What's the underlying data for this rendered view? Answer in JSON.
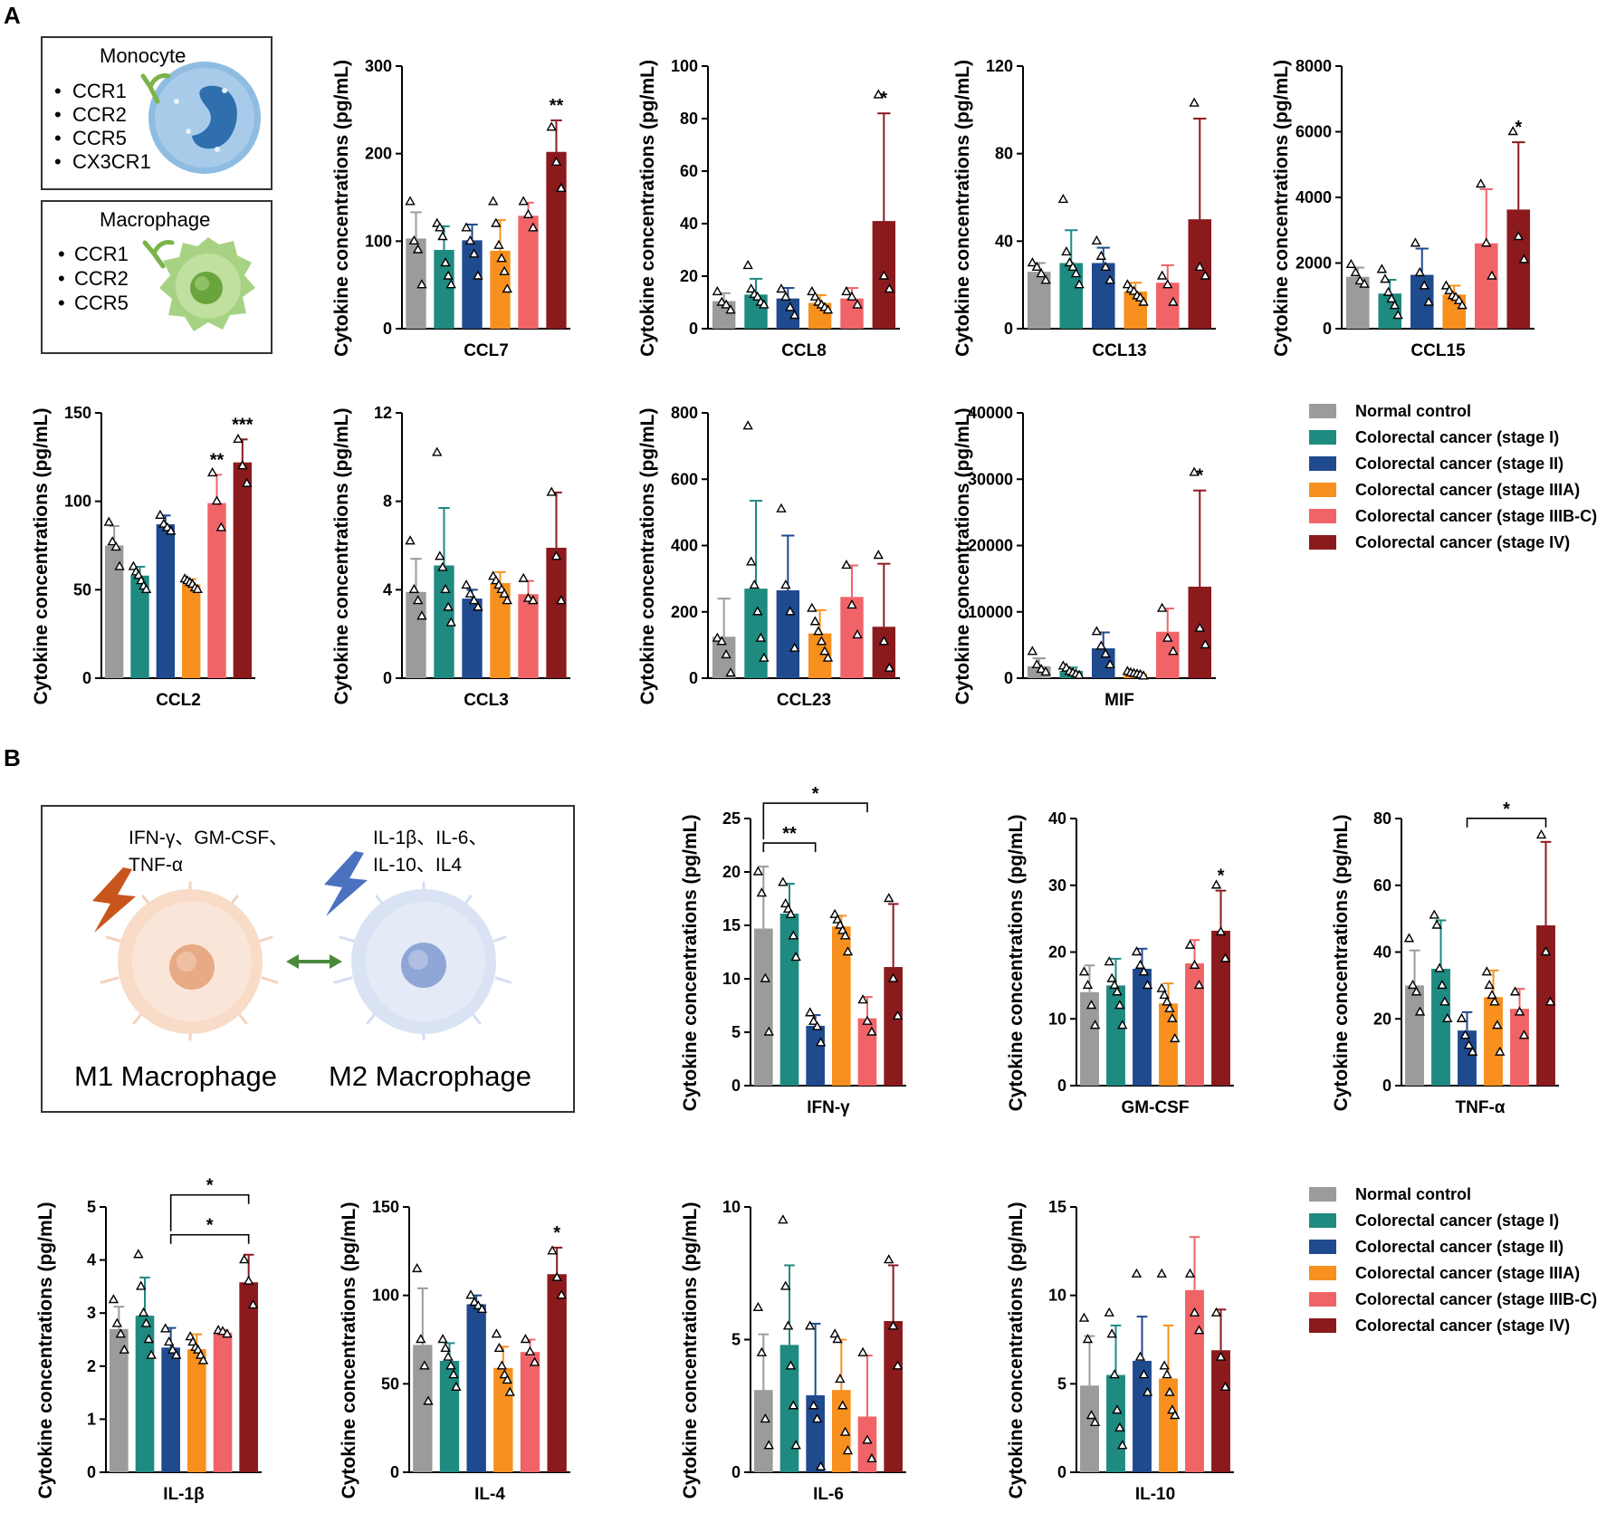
{
  "panels": {
    "a": "A",
    "b": "B"
  },
  "colors": {
    "normal": "#9b9b9b",
    "stage1": "#1e8a80",
    "stage2": "#1f4a8e",
    "stage3a": "#f7901e",
    "stage3bc": "#f06468",
    "stage4": "#8b1a1d"
  },
  "ylabel": "Cytokine concentrations (pg/mL)",
  "legend": {
    "items": [
      {
        "label": "Normal control",
        "color": "#9b9b9b"
      },
      {
        "label": "Colorectal cancer (stage I)",
        "color": "#1e8a80"
      },
      {
        "label": "Colorectal cancer (stage II)",
        "color": "#1f4a8e"
      },
      {
        "label": "Colorectal cancer (stage IIIA)",
        "color": "#f7901e"
      },
      {
        "label": "Colorectal cancer (stage IIIB-C)",
        "color": "#f06468"
      },
      {
        "label": "Colorectal cancer (stage IV)",
        "color": "#8b1a1d"
      }
    ]
  },
  "cells": {
    "monocyte": {
      "title": "Monocyte",
      "receptors": [
        "CCR1",
        "CCR2",
        "CCR5",
        "CX3CR1"
      ]
    },
    "macrophage": {
      "title": "Macrophage",
      "receptors": [
        "CCR1",
        "CCR2",
        "CCR5"
      ]
    }
  },
  "polarization": {
    "m1_signals_line1": "IFN-γ、GM-CSF、",
    "m1_signals_line2": "TNF-α",
    "m2_signals_line1": "IL-1β、IL-6、",
    "m2_signals_line2": "IL-10、IL4",
    "m1_label": "M1 Macrophage",
    "m2_label": "M2 Macrophage",
    "m1_color": "#c8561c",
    "m2_color": "#4a72bf",
    "arrow_color": "#4a8a3c"
  },
  "chart_data": [
    {
      "type": "bar",
      "title": "CCL7",
      "ylim": [
        0,
        300
      ],
      "yticks": [
        0,
        100,
        200,
        300
      ],
      "values": [
        103,
        90,
        101,
        89,
        129,
        202
      ],
      "errors": [
        30,
        27,
        18,
        35,
        15,
        36
      ],
      "points": [
        [
          145,
          100,
          90,
          50
        ],
        [
          120,
          115,
          105,
          75,
          60,
          50
        ],
        [
          115,
          100,
          85,
          60
        ],
        [
          145,
          120,
          95,
          80,
          65,
          45
        ],
        [
          145,
          130,
          115
        ],
        [
          230,
          190,
          160
        ]
      ],
      "stars": [
        {
          "bar": 5,
          "text": "**"
        }
      ],
      "brackets": []
    },
    {
      "type": "bar",
      "title": "CCL8",
      "ylim": [
        0,
        100
      ],
      "yticks": [
        0,
        20,
        40,
        60,
        80,
        100
      ],
      "values": [
        10.5,
        13,
        11.5,
        9.8,
        11.5,
        41
      ],
      "errors": [
        3,
        6,
        4,
        3,
        4,
        41
      ],
      "points": [
        [
          14,
          10,
          9,
          7
        ],
        [
          24,
          15,
          13,
          12,
          10,
          9
        ],
        [
          15,
          12,
          8,
          5
        ],
        [
          14,
          12,
          10,
          9,
          8,
          7
        ],
        [
          14,
          12,
          9
        ],
        [
          89,
          20,
          15
        ]
      ],
      "stars": [
        {
          "bar": 5,
          "text": "*"
        }
      ],
      "brackets": []
    },
    {
      "type": "bar",
      "title": "CCL13",
      "ylim": [
        0,
        120
      ],
      "yticks": [
        0,
        40,
        80,
        120
      ],
      "values": [
        26,
        30,
        30,
        17,
        21,
        50
      ],
      "errors": [
        4,
        15,
        7,
        4,
        8,
        46
      ],
      "points": [
        [
          30,
          28,
          25,
          22
        ],
        [
          59,
          35,
          30,
          28,
          25,
          20
        ],
        [
          40,
          33,
          28,
          22
        ],
        [
          20,
          18,
          17,
          15,
          14,
          12
        ],
        [
          24,
          20,
          12
        ],
        [
          103,
          28,
          24
        ]
      ],
      "stars": [],
      "brackets": []
    },
    {
      "type": "bar",
      "title": "CCL15",
      "ylim": [
        0,
        8000
      ],
      "yticks": [
        0,
        2000,
        4000,
        6000,
        8000
      ],
      "values": [
        1580,
        1070,
        1640,
        1040,
        2600,
        3630
      ],
      "errors": [
        280,
        420,
        800,
        270,
        1650,
        2050
      ],
      "points": [
        [
          1950,
          1700,
          1450,
          1350
        ],
        [
          1800,
          1500,
          1100,
          900,
          700,
          400
        ],
        [
          2600,
          1700,
          1300,
          800
        ],
        [
          1300,
          1150,
          1000,
          950,
          850,
          700
        ],
        [
          4400,
          2600,
          1600
        ],
        [
          6000,
          2800,
          2100
        ]
      ],
      "stars": [
        {
          "bar": 5,
          "text": "*"
        }
      ],
      "brackets": []
    },
    {
      "type": "bar",
      "title": "CCL2",
      "ylim": [
        0,
        150
      ],
      "yticks": [
        0,
        50,
        100,
        150
      ],
      "values": [
        75,
        58,
        87,
        53,
        99,
        122
      ],
      "errors": [
        11,
        5,
        5,
        3,
        16,
        13
      ],
      "points": [
        [
          88,
          77,
          74,
          63
        ],
        [
          63,
          60,
          58,
          55,
          52,
          50
        ],
        [
          92,
          87,
          85,
          83
        ],
        [
          56,
          55,
          54,
          53,
          51,
          50
        ],
        [
          116,
          100,
          85
        ],
        [
          135,
          120,
          110
        ]
      ],
      "stars": [
        {
          "bar": 4,
          "text": "**"
        },
        {
          "bar": 5,
          "text": "***"
        }
      ],
      "brackets": []
    },
    {
      "type": "bar",
      "title": "CCL3",
      "ylim": [
        0,
        12
      ],
      "yticks": [
        0,
        4,
        8,
        12
      ],
      "values": [
        3.9,
        5.1,
        3.6,
        4.3,
        3.8,
        5.9
      ],
      "errors": [
        1.5,
        2.6,
        0.4,
        0.5,
        0.6,
        2.5
      ],
      "points": [
        [
          6.2,
          4.0,
          3.5,
          2.8
        ],
        [
          10.2,
          5.5,
          5.0,
          4.0,
          3.2,
          2.5
        ],
        [
          4.2,
          3.8,
          3.5,
          3.2
        ],
        [
          4.6,
          4.4,
          4.2,
          4.0,
          3.8,
          3.5
        ],
        [
          4.5,
          3.6,
          3.5
        ],
        [
          8.4,
          5.5,
          3.5
        ]
      ],
      "stars": [],
      "brackets": []
    },
    {
      "type": "bar",
      "title": "CCL23",
      "ylim": [
        0,
        800
      ],
      "yticks": [
        0,
        200,
        400,
        600,
        800
      ],
      "values": [
        125,
        270,
        265,
        135,
        245,
        155
      ],
      "errors": [
        115,
        265,
        165,
        70,
        95,
        190
      ],
      "points": [
        [
          120,
          110,
          70,
          15
        ],
        [
          760,
          350,
          280,
          200,
          120,
          60
        ],
        [
          510,
          280,
          200,
          90
        ],
        [
          210,
          170,
          140,
          110,
          80,
          60
        ],
        [
          340,
          220,
          130
        ],
        [
          370,
          110,
          30
        ]
      ],
      "stars": [],
      "brackets": []
    },
    {
      "type": "bar",
      "title": "MIF",
      "ylim": [
        0,
        40000
      ],
      "yticks": [
        0,
        10000,
        20000,
        30000,
        40000
      ],
      "values": [
        1800,
        1100,
        4500,
        700,
        7000,
        13800
      ],
      "errors": [
        1200,
        500,
        2400,
        300,
        3500,
        14500
      ],
      "points": [
        [
          4000,
          2000,
          1300,
          900
        ],
        [
          1800,
          1500,
          1000,
          800,
          600,
          400
        ],
        [
          7000,
          4800,
          3600,
          2000
        ],
        [
          1000,
          800,
          700,
          600,
          500,
          300
        ],
        [
          10500,
          6000,
          4000
        ],
        [
          31000,
          7500,
          5000
        ]
      ],
      "stars": [
        {
          "bar": 5,
          "text": "*"
        }
      ],
      "brackets": []
    },
    {
      "type": "bar",
      "title": "IFN-γ",
      "ylim": [
        0,
        25
      ],
      "yticks": [
        0,
        5,
        10,
        15,
        20,
        25
      ],
      "values": [
        14.7,
        16.1,
        5.6,
        14.9,
        6.3,
        11.1
      ],
      "errors": [
        5.8,
        2.8,
        1.0,
        1.0,
        2.0,
        5.9
      ],
      "points": [
        [
          20,
          18,
          10,
          5
        ],
        [
          19,
          17,
          16.5,
          16,
          14,
          12
        ],
        [
          6.8,
          6.0,
          5.5,
          4.0
        ],
        [
          16,
          15.5,
          15,
          14.5,
          14,
          12.5
        ],
        [
          8,
          6,
          5
        ],
        [
          17.5,
          10,
          6.5
        ]
      ],
      "stars": [],
      "brackets": [
        {
          "from": 0,
          "to": 2,
          "level": 0,
          "text": "**"
        },
        {
          "from": 0,
          "to": 4,
          "level": 1,
          "text": "*"
        }
      ]
    },
    {
      "type": "bar",
      "title": "GM-CSF",
      "ylim": [
        0,
        40
      ],
      "yticks": [
        0,
        10,
        20,
        30,
        40
      ],
      "values": [
        14,
        15,
        17.5,
        12.3,
        18.3,
        23.2
      ],
      "errors": [
        4,
        4,
        3,
        3,
        3.5,
        6
      ],
      "points": [
        [
          17,
          15,
          12,
          9
        ],
        [
          18.5,
          16,
          15,
          14,
          12,
          9
        ],
        [
          20,
          18,
          17,
          15
        ],
        [
          14.5,
          13.5,
          12.5,
          11.5,
          10,
          7
        ],
        [
          21,
          18,
          15
        ],
        [
          30,
          23,
          19
        ]
      ],
      "stars": [
        {
          "bar": 5,
          "text": "*"
        }
      ],
      "brackets": []
    },
    {
      "type": "bar",
      "title": "TNF-α",
      "ylim": [
        0,
        80
      ],
      "yticks": [
        0,
        20,
        40,
        60,
        80
      ],
      "values": [
        30,
        35,
        16.5,
        26.5,
        23,
        48
      ],
      "errors": [
        10.5,
        14.5,
        5.5,
        8,
        6,
        25
      ],
      "points": [
        [
          44,
          30,
          28,
          22
        ],
        [
          51,
          48,
          35,
          30,
          25,
          20
        ],
        [
          20,
          15,
          12,
          10
        ],
        [
          34,
          30,
          27,
          25,
          18,
          10
        ],
        [
          28,
          22,
          15
        ],
        [
          75,
          40,
          25
        ]
      ],
      "stars": [],
      "brackets": [
        {
          "from": 2,
          "to": 5,
          "level": 0,
          "text": "*"
        }
      ]
    },
    {
      "type": "bar",
      "title": "IL-1β",
      "ylim": [
        0,
        5
      ],
      "yticks": [
        0,
        1,
        2,
        3,
        4,
        5
      ],
      "values": [
        2.7,
        2.95,
        2.35,
        2.32,
        2.63,
        3.58
      ],
      "errors": [
        0.42,
        0.72,
        0.37,
        0.28,
        0.05,
        0.52
      ],
      "points": [
        [
          3.25,
          2.8,
          2.6,
          2.3
        ],
        [
          4.1,
          3.5,
          3.0,
          2.8,
          2.5,
          2.2
        ],
        [
          2.7,
          2.45,
          2.3,
          2.2
        ],
        [
          2.55,
          2.45,
          2.35,
          2.3,
          2.2,
          2.1
        ],
        [
          2.67,
          2.65,
          2.6
        ],
        [
          4.0,
          3.6,
          3.15
        ]
      ],
      "stars": [],
      "brackets": [
        {
          "from": 2,
          "to": 5,
          "level": 0,
          "text": "*"
        },
        {
          "from": 2,
          "to": 5,
          "level": 1,
          "text": "*"
        }
      ]
    },
    {
      "type": "bar",
      "title": "IL-4",
      "ylim": [
        0,
        150
      ],
      "yticks": [
        0,
        50,
        100,
        150
      ],
      "values": [
        72,
        63,
        95,
        59,
        68,
        112
      ],
      "errors": [
        32,
        10,
        5,
        12,
        7,
        15
      ],
      "points": [
        [
          115,
          75,
          60,
          40
        ],
        [
          75,
          70,
          65,
          60,
          55,
          48
        ],
        [
          100,
          96,
          94,
          92
        ],
        [
          78,
          70,
          60,
          55,
          52,
          45
        ],
        [
          75,
          68,
          62
        ],
        [
          125,
          110,
          100
        ]
      ],
      "stars": [
        {
          "bar": 5,
          "text": "*"
        }
      ],
      "brackets": []
    },
    {
      "type": "bar",
      "title": "IL-6",
      "ylim": [
        0,
        10
      ],
      "yticks": [
        0,
        5,
        10
      ],
      "values": [
        3.1,
        4.8,
        2.9,
        3.1,
        2.1,
        5.7
      ],
      "errors": [
        2.1,
        3.0,
        2.7,
        1.9,
        2.3,
        2.1
      ],
      "points": [
        [
          6.2,
          4.5,
          2.0,
          1.0
        ],
        [
          9.5,
          7.0,
          5.5,
          4.0,
          2.5,
          1.0
        ],
        [
          5.5,
          2.5,
          2.0,
          0.2
        ],
        [
          5.2,
          5.0,
          3.5,
          2.5,
          1.5,
          0.8
        ],
        [
          4.5,
          1.2,
          0.5
        ],
        [
          8.0,
          5.5,
          4.0
        ]
      ],
      "stars": [],
      "brackets": []
    },
    {
      "type": "bar",
      "title": "IL-10",
      "ylim": [
        0,
        15
      ],
      "yticks": [
        0,
        5,
        10,
        15
      ],
      "values": [
        4.9,
        5.5,
        6.3,
        5.3,
        10.3,
        6.9
      ],
      "errors": [
        2.8,
        2.8,
        2.5,
        3.0,
        3.0,
        2.3
      ],
      "points": [
        [
          8.7,
          7.5,
          3.2,
          2.8
        ],
        [
          9.0,
          7.8,
          5.5,
          3.5,
          2.5,
          1.5
        ],
        [
          11.2,
          6.5,
          5.5,
          4.5
        ],
        [
          11.2,
          6.0,
          5.5,
          4.5,
          3.5,
          3.2
        ],
        [
          11.2,
          9.0,
          8.0
        ],
        [
          9.0,
          6.5,
          4.8
        ]
      ],
      "stars": [],
      "brackets": []
    }
  ]
}
